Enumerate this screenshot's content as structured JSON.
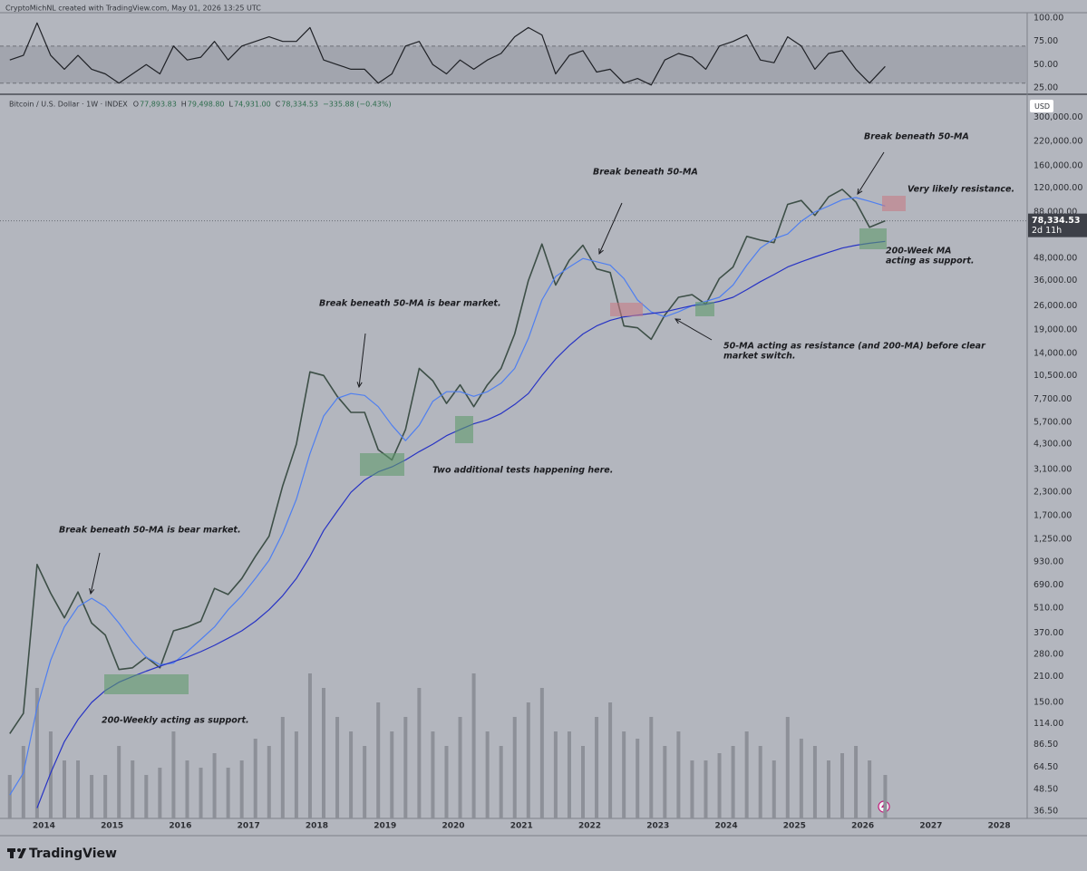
{
  "header": {
    "credit": "CryptoMichNL created with TradingView.com, May 01, 2026 13:25 UTC",
    "brand": "TradingView"
  },
  "chart_data": [
    {
      "type": "line",
      "x": [
        2013.5,
        2013.7,
        2013.9,
        2014.1,
        2014.3,
        2014.5,
        2014.7,
        2014.9,
        2015.1,
        2015.3,
        2015.5,
        2015.7,
        2015.9,
        2016.1,
        2016.3,
        2016.5,
        2016.7,
        2016.9,
        2017.1,
        2017.3,
        2017.5,
        2017.7,
        2017.9,
        2018.1,
        2018.3,
        2018.5,
        2018.7,
        2018.9,
        2019.1,
        2019.3,
        2019.5,
        2019.7,
        2019.9,
        2020.1,
        2020.3,
        2020.5,
        2020.7,
        2020.9,
        2021.1,
        2021.3,
        2021.5,
        2021.7,
        2021.9,
        2022.1,
        2022.3,
        2022.5,
        2022.7,
        2022.9,
        2023.1,
        2023.3,
        2023.5,
        2023.7,
        2023.9,
        2024.1,
        2024.3,
        2024.5,
        2024.7,
        2024.9,
        2025.1,
        2025.3,
        2025.5,
        2025.7,
        2025.9,
        2026.1,
        2026.33
      ],
      "xlim": [
        2013.45,
        2028.41
      ],
      "series": [
        {
          "color": "#1f2126",
          "values": [
            55,
            60,
            95,
            60,
            45,
            60,
            45,
            40,
            30,
            40,
            50,
            40,
            70,
            55,
            58,
            75,
            55,
            70,
            75,
            80,
            75,
            75,
            90,
            55,
            50,
            45,
            45,
            30,
            40,
            70,
            75,
            50,
            40,
            55,
            45,
            55,
            62,
            80,
            90,
            82,
            40,
            60,
            65,
            42,
            45,
            30,
            35,
            28,
            55,
            62,
            58,
            45,
            70,
            75,
            82,
            55,
            52,
            80,
            70,
            45,
            62,
            65,
            45,
            30,
            48
          ]
        }
      ],
      "ylim": [
        19,
        106
      ],
      "yticks": [
        {
          "value": 100,
          "label": "100.00"
        },
        {
          "value": 75,
          "label": "75.00"
        },
        {
          "value": 50,
          "label": "50.00"
        },
        {
          "value": 25,
          "label": "25.00"
        }
      ],
      "band": [
        30,
        70
      ]
    },
    {
      "type": "line",
      "symbol": "Bitcoin / U.S. Dollar · 1W · INDEX",
      "ohlc": [
        {
          "key": "O",
          "text": "77,893.83"
        },
        {
          "key": "H",
          "text": "79,498.80"
        },
        {
          "key": "L",
          "text": "74,931.00"
        },
        {
          "key": "C",
          "text": "78,334.53"
        }
      ],
      "change": "−335.88 (−0.43%)",
      "currency": "USD",
      "log_scale": true,
      "x": [
        2013.5,
        2013.7,
        2013.9,
        2014.1,
        2014.3,
        2014.5,
        2014.7,
        2014.9,
        2015.1,
        2015.3,
        2015.5,
        2015.7,
        2015.9,
        2016.1,
        2016.3,
        2016.5,
        2016.7,
        2016.9,
        2017.1,
        2017.3,
        2017.5,
        2017.7,
        2017.9,
        2018.1,
        2018.3,
        2018.5,
        2018.7,
        2018.9,
        2019.1,
        2019.3,
        2019.5,
        2019.7,
        2019.9,
        2020.1,
        2020.3,
        2020.5,
        2020.7,
        2020.9,
        2021.1,
        2021.3,
        2021.5,
        2021.7,
        2021.9,
        2022.1,
        2022.3,
        2022.5,
        2022.7,
        2022.9,
        2023.1,
        2023.3,
        2023.5,
        2023.7,
        2023.9,
        2024.1,
        2024.3,
        2024.5,
        2024.7,
        2024.9,
        2025.1,
        2025.3,
        2025.5,
        2025.7,
        2025.9,
        2026.1,
        2026.33
      ],
      "xlim": [
        2013.45,
        2028.41
      ],
      "xticks": [
        2014,
        2015,
        2016,
        2017,
        2018,
        2019,
        2020,
        2021,
        2022,
        2023,
        2024,
        2025,
        2026,
        2027,
        2028
      ],
      "ylim": [
        33.2,
        401000
      ],
      "yticks": [
        {
          "value": 300000,
          "label": "300,000.00"
        },
        {
          "value": 220000,
          "label": "220,000.00"
        },
        {
          "value": 160000,
          "label": "160,000.00"
        },
        {
          "value": 120000,
          "label": "120,000.00"
        },
        {
          "value": 88000,
          "label": "88,000.00"
        },
        {
          "value": 48000,
          "label": "48,000.00"
        },
        {
          "value": 36000,
          "label": "36,000.00"
        },
        {
          "value": 26000,
          "label": "26,000.00"
        },
        {
          "value": 19000,
          "label": "19,000.00"
        },
        {
          "value": 14000,
          "label": "14,000.00"
        },
        {
          "value": 10500,
          "label": "10,500.00"
        },
        {
          "value": 7700,
          "label": "7,700.00"
        },
        {
          "value": 5700,
          "label": "5,700.00"
        },
        {
          "value": 4300,
          "label": "4,300.00"
        },
        {
          "value": 3100,
          "label": "3,100.00"
        },
        {
          "value": 2300,
          "label": "2,300.00"
        },
        {
          "value": 1700,
          "label": "1,700.00"
        },
        {
          "value": 1250,
          "label": "1,250.00"
        },
        {
          "value": 930,
          "label": "930.00"
        },
        {
          "value": 690,
          "label": "690.00"
        },
        {
          "value": 510,
          "label": "510.00"
        },
        {
          "value": 370,
          "label": "370.00"
        },
        {
          "value": 280,
          "label": "280.00"
        },
        {
          "value": 210,
          "label": "210.00"
        },
        {
          "value": 150,
          "label": "150.00"
        },
        {
          "value": 114,
          "label": "114.00"
        },
        {
          "value": 86.5,
          "label": "86.50"
        },
        {
          "value": 64.5,
          "label": "64.50"
        },
        {
          "value": 48.5,
          "label": "48.50"
        },
        {
          "value": 36.5,
          "label": "36.50"
        }
      ],
      "series": [
        {
          "color": "#3d4f47",
          "values": [
            100,
            130,
            900,
            620,
            450,
            630,
            420,
            360,
            230,
            235,
            270,
            235,
            380,
            400,
            430,
            660,
            610,
            750,
            1000,
            1300,
            2500,
            4300,
            11000,
            10500,
            8000,
            6500,
            6500,
            4000,
            3500,
            5200,
            11500,
            9800,
            7300,
            9300,
            7000,
            9300,
            11500,
            18000,
            36000,
            58000,
            34000,
            47000,
            57000,
            42000,
            40000,
            20000,
            19500,
            16800,
            23000,
            29000,
            30000,
            26500,
            37000,
            43000,
            64000,
            61000,
            59000,
            97000,
            102000,
            84000,
            107000,
            118000,
            100000,
            72000,
            78334.53
          ]
        },
        {
          "color": "#4f7ff0",
          "values": [
            45,
            60,
            140,
            260,
            400,
            520,
            580,
            520,
            420,
            330,
            270,
            245,
            250,
            290,
            340,
            400,
            500,
            600,
            750,
            950,
            1350,
            2100,
            3800,
            6200,
            7800,
            8300,
            8100,
            7000,
            5500,
            4500,
            5500,
            7500,
            8500,
            8500,
            8000,
            8500,
            9500,
            11500,
            17000,
            28000,
            38000,
            43000,
            48000,
            46000,
            44000,
            37000,
            28000,
            24000,
            22500,
            24000,
            26000,
            27500,
            29000,
            34000,
            44000,
            55000,
            62000,
            66000,
            78000,
            88000,
            95000,
            103000,
            106000,
            101000,
            95000
          ]
        },
        {
          "color": "#2733c4",
          "values": [
            null,
            null,
            38,
            60,
            90,
            120,
            150,
            175,
            195,
            210,
            225,
            240,
            255,
            270,
            290,
            315,
            345,
            380,
            430,
            500,
            600,
            750,
            1000,
            1400,
            1800,
            2300,
            2700,
            3000,
            3200,
            3500,
            3900,
            4300,
            4800,
            5200,
            5600,
            5900,
            6400,
            7200,
            8300,
            10500,
            13000,
            15500,
            18000,
            20000,
            21500,
            22500,
            23000,
            23500,
            24000,
            25000,
            26000,
            26500,
            27500,
            29000,
            32000,
            35500,
            39000,
            43000,
            46000,
            49000,
            52000,
            55000,
            57000,
            58500,
            60000
          ]
        }
      ],
      "volume": {
        "color": "#8d9098",
        "values": [
          30,
          50,
          90,
          60,
          40,
          40,
          30,
          30,
          50,
          40,
          30,
          35,
          60,
          40,
          35,
          45,
          35,
          40,
          55,
          50,
          70,
          60,
          100,
          90,
          70,
          60,
          50,
          80,
          60,
          70,
          90,
          60,
          50,
          70,
          100,
          60,
          50,
          70,
          80,
          90,
          60,
          60,
          50,
          70,
          80,
          60,
          55,
          70,
          50,
          60,
          40,
          40,
          45,
          50,
          60,
          50,
          40,
          70,
          55,
          50,
          40,
          45,
          50,
          40,
          30
        ]
      },
      "last_price": {
        "value": 78334.53,
        "label": "78,334.53"
      },
      "countdown": "2d 11h",
      "annotations": [
        [
          "Break beneath 50-MA is bear market."
        ],
        [
          "200-Weekly acting as support."
        ],
        [
          "Break beneath 50-MA is bear market."
        ],
        [
          "Two additional tests happening here."
        ],
        [
          "Break beneath 50-MA"
        ],
        [
          "50-MA acting as resistance (and 200-MA) before clear",
          "market switch."
        ],
        [
          "Break beneath 50-MA"
        ],
        [
          "Very likely resistance."
        ],
        [
          "200-Week MA",
          "acting as support."
        ]
      ]
    }
  ]
}
